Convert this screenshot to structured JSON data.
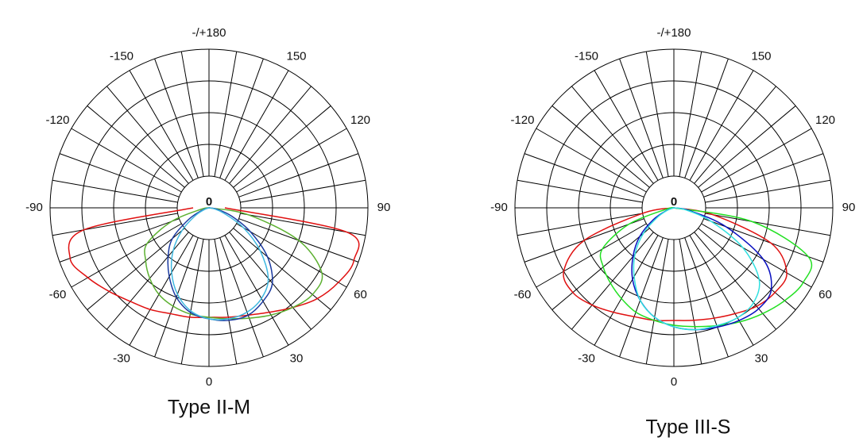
{
  "chart_data": [
    {
      "type": "polar",
      "title": "Type II-M",
      "center_label": "0",
      "rlim": [
        0,
        100
      ],
      "rticks": [
        20,
        40,
        60,
        80,
        100
      ],
      "thetagrid": [
        -170,
        -160,
        -150,
        -140,
        -130,
        -120,
        -110,
        -100,
        -90,
        -80,
        -70,
        -60,
        -50,
        -40,
        -30,
        -20,
        -10,
        0,
        10,
        20,
        30,
        40,
        50,
        60,
        70,
        80,
        90,
        100,
        110,
        120,
        130,
        140,
        150,
        160,
        170,
        180
      ],
      "thetaticks": [
        {
          "value": 180,
          "label": "-/+180"
        },
        150,
        120,
        90,
        60,
        30,
        0,
        -30,
        -60,
        -90,
        -120,
        -150
      ],
      "theta": [
        -90,
        -80,
        -70,
        -60,
        -50,
        -40,
        -30,
        -20,
        -10,
        0,
        10,
        20,
        30,
        40,
        50,
        60,
        70,
        80,
        90
      ],
      "series": [
        {
          "color": "#e01010",
          "values": [
            10,
            80,
            93,
            88,
            82,
            77,
            74,
            71,
            70,
            69,
            70,
            72,
            76,
            82,
            89,
            94,
            97,
            88,
            10
          ]
        },
        {
          "color": "#5cb030",
          "values": [
            0,
            5,
            25,
            45,
            52,
            58,
            63,
            66,
            68,
            69,
            71,
            74,
            78,
            82,
            85,
            82,
            60,
            25,
            0
          ]
        },
        {
          "color": "#1a3aa0",
          "values": [
            0,
            0,
            5,
            15,
            30,
            40,
            50,
            60,
            67,
            70,
            72,
            72,
            68,
            62,
            48,
            30,
            15,
            5,
            0
          ]
        },
        {
          "color": "#40b8e0",
          "values": [
            0,
            0,
            3,
            10,
            22,
            35,
            47,
            58,
            66,
            70,
            71,
            70,
            66,
            58,
            42,
            25,
            10,
            3,
            0
          ]
        }
      ]
    },
    {
      "type": "polar",
      "title": "Type III-S",
      "center_label": "0",
      "rlim": [
        0,
        100
      ],
      "rticks": [
        20,
        40,
        60,
        80,
        100
      ],
      "thetagrid": [
        -170,
        -160,
        -150,
        -140,
        -130,
        -120,
        -110,
        -100,
        -90,
        -80,
        -70,
        -60,
        -50,
        -40,
        -30,
        -20,
        -10,
        0,
        10,
        20,
        30,
        40,
        50,
        60,
        70,
        80,
        90,
        100,
        110,
        120,
        130,
        140,
        150,
        160,
        170,
        180
      ],
      "thetaticks": [
        {
          "value": 180,
          "label": "-/+180"
        },
        150,
        120,
        90,
        60,
        30,
        0,
        -30,
        -60,
        -90,
        -120,
        -150
      ],
      "theta": [
        -90,
        -80,
        -70,
        -60,
        -50,
        -40,
        -30,
        -20,
        -10,
        0,
        10,
        20,
        30,
        40,
        50,
        60,
        70,
        80,
        90
      ],
      "series": [
        {
          "color": "#e01010",
          "values": [
            0,
            20,
            60,
            80,
            83,
            80,
            76,
            73,
            72,
            71,
            72,
            74,
            77,
            81,
            83,
            82,
            65,
            25,
            0
          ]
        },
        {
          "color": "#22e022",
          "values": [
            0,
            5,
            30,
            52,
            58,
            62,
            66,
            70,
            72,
            74,
            76,
            79,
            83,
            87,
            91,
            94,
            90,
            50,
            0
          ]
        },
        {
          "color": "#0a10c0",
          "values": [
            0,
            0,
            5,
            15,
            28,
            40,
            52,
            62,
            70,
            75,
            78,
            80,
            82,
            83,
            80,
            65,
            35,
            10,
            0
          ]
        },
        {
          "color": "#30e0e0",
          "values": [
            0,
            0,
            4,
            12,
            25,
            38,
            50,
            62,
            70,
            75,
            78,
            79,
            80,
            78,
            70,
            50,
            25,
            8,
            0
          ]
        }
      ]
    }
  ]
}
